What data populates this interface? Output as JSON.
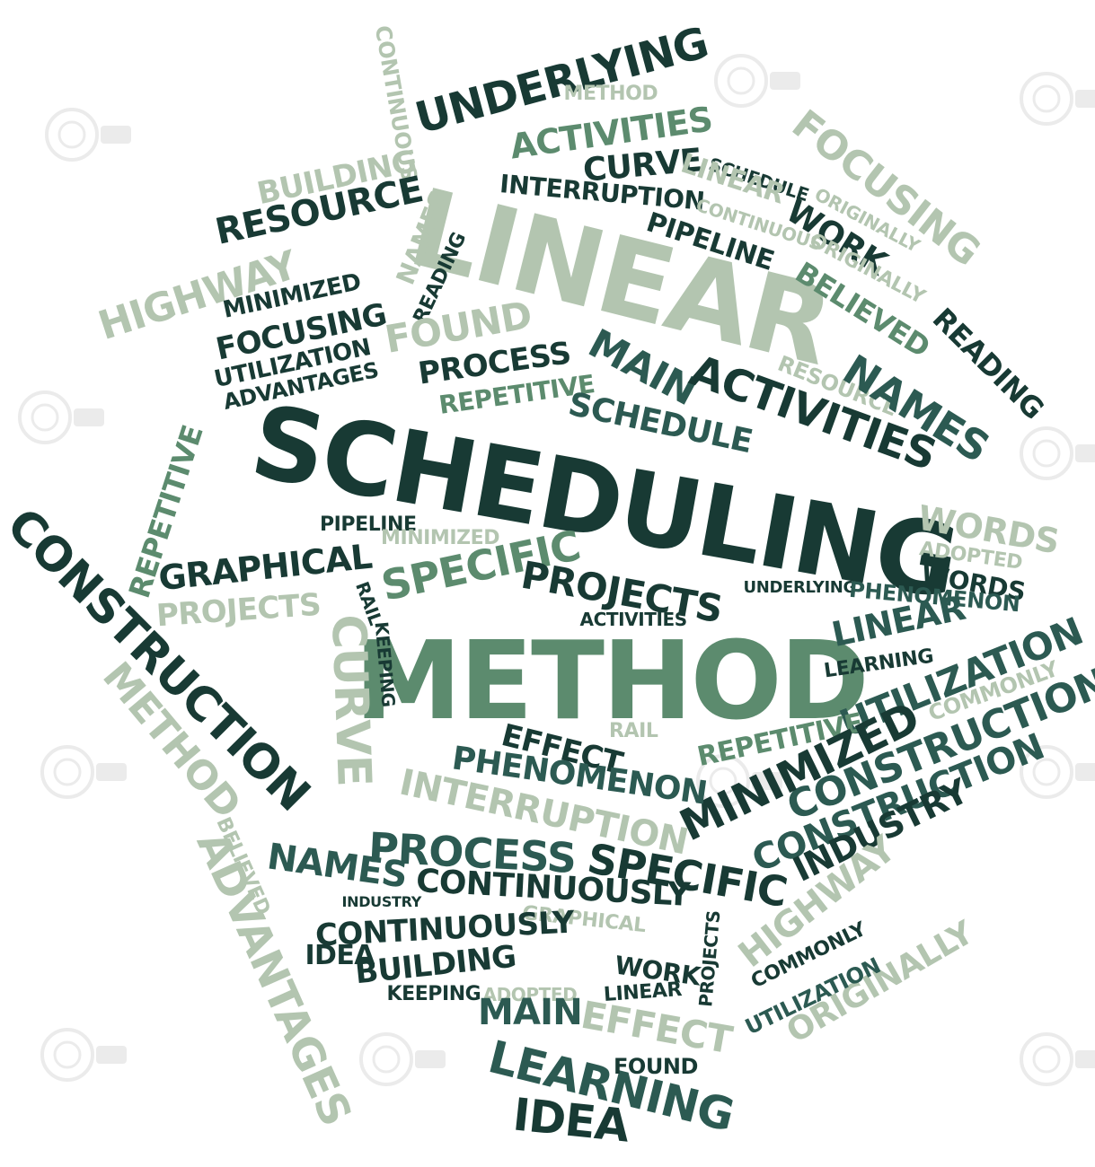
{
  "palette": {
    "dark": "#183a34",
    "teal": "#2c5a52",
    "mid": "#5c8b6e",
    "pale": "#b3c5b0"
  },
  "words": [
    {
      "t": "SCHEDULING",
      "c": "dark"
    },
    {
      "t": "METHOD",
      "c": "mid"
    },
    {
      "t": "LINEAR",
      "c": "pale"
    },
    {
      "t": "CONSTRUCTION",
      "c": "dark"
    },
    {
      "t": "UNDERLYING",
      "c": "dark"
    },
    {
      "t": "CONTINUOUS",
      "c": "pale"
    },
    {
      "t": "METHOD",
      "c": "pale"
    },
    {
      "t": "ACTIVITIES",
      "c": "mid"
    },
    {
      "t": "CURVE",
      "c": "dark"
    },
    {
      "t": "FOCUSING",
      "c": "pale"
    },
    {
      "t": "BUILDING",
      "c": "pale"
    },
    {
      "t": "RESOURCE",
      "c": "dark"
    },
    {
      "t": "INTERRUPTION",
      "c": "dark"
    },
    {
      "t": "SCHEDULE",
      "c": "dark"
    },
    {
      "t": "LINEAR",
      "c": "pale"
    },
    {
      "t": "ORIGINALLY",
      "c": "pale"
    },
    {
      "t": "CONTINUOUS",
      "c": "pale"
    },
    {
      "t": "PIPELINE",
      "c": "dark"
    },
    {
      "t": "WORK",
      "c": "dark"
    },
    {
      "t": "ORIGINALLY",
      "c": "pale"
    },
    {
      "t": "NAMES",
      "c": "pale"
    },
    {
      "t": "HIGHWAY",
      "c": "pale"
    },
    {
      "t": "MINIMIZED",
      "c": "dark"
    },
    {
      "t": "READING",
      "c": "dark"
    },
    {
      "t": "FOCUSING",
      "c": "dark"
    },
    {
      "t": "FOUND",
      "c": "pale"
    },
    {
      "t": "BELIEVED",
      "c": "mid"
    },
    {
      "t": "READING",
      "c": "dark"
    },
    {
      "t": "UTILIZATION",
      "c": "dark"
    },
    {
      "t": "ADVANTAGES",
      "c": "dark"
    },
    {
      "t": "PROCESS",
      "c": "dark"
    },
    {
      "t": "REPETITIVE",
      "c": "mid"
    },
    {
      "t": "MAIN",
      "c": "teal"
    },
    {
      "t": "ACTIVITIES",
      "c": "dark"
    },
    {
      "t": "RESOURCE",
      "c": "pale"
    },
    {
      "t": "NAMES",
      "c": "teal"
    },
    {
      "t": "SCHEDULE",
      "c": "teal"
    },
    {
      "t": "REPETITIVE",
      "c": "mid"
    },
    {
      "t": "WORDS",
      "c": "pale"
    },
    {
      "t": "ADOPTED",
      "c": "pale"
    },
    {
      "t": "WORDS",
      "c": "dark"
    },
    {
      "t": "PIPELINE",
      "c": "dark"
    },
    {
      "t": "MINIMIZED",
      "c": "pale"
    },
    {
      "t": "GRAPHICAL",
      "c": "dark"
    },
    {
      "t": "SPECIFIC",
      "c": "mid"
    },
    {
      "t": "PROJECTS",
      "c": "dark"
    },
    {
      "t": "UNDERLYING",
      "c": "dark"
    },
    {
      "t": "PHENOMENON",
      "c": "teal"
    },
    {
      "t": "PROJECTS",
      "c": "pale"
    },
    {
      "t": "RAIL",
      "c": "dark"
    },
    {
      "t": "ACTIVITIES",
      "c": "dark"
    },
    {
      "t": "LINEAR",
      "c": "teal"
    },
    {
      "t": "KEEPING",
      "c": "dark"
    },
    {
      "t": "CURVE",
      "c": "pale"
    },
    {
      "t": "LEARNING",
      "c": "dark"
    },
    {
      "t": "UTILIZATION",
      "c": "teal"
    },
    {
      "t": "COMMONLY",
      "c": "pale"
    },
    {
      "t": "METHOD",
      "c": "pale"
    },
    {
      "t": "RAIL",
      "c": "pale"
    },
    {
      "t": "REPETITIVE",
      "c": "mid"
    },
    {
      "t": "CONSTRUCTION",
      "c": "teal"
    },
    {
      "t": "EFFECT",
      "c": "dark"
    },
    {
      "t": "MINIMIZED",
      "c": "dark"
    },
    {
      "t": "PHENOMENON",
      "c": "teal"
    },
    {
      "t": "INTERRUPTION",
      "c": "pale"
    },
    {
      "t": "CONSTRUCTION",
      "c": "teal"
    },
    {
      "t": "INDUSTRY",
      "c": "dark"
    },
    {
      "t": "BELIEVED",
      "c": "pale"
    },
    {
      "t": "PROCESS",
      "c": "teal"
    },
    {
      "t": "SPECIFIC",
      "c": "dark"
    },
    {
      "t": "ADVANTAGES",
      "c": "pale"
    },
    {
      "t": "NAMES",
      "c": "teal"
    },
    {
      "t": "CONTINUOUSLY",
      "c": "dark"
    },
    {
      "t": "HIGHWAY",
      "c": "pale"
    },
    {
      "t": "INDUSTRY",
      "c": "dark"
    },
    {
      "t": "GRAPHICAL",
      "c": "pale"
    },
    {
      "t": "PROJECTS",
      "c": "dark"
    },
    {
      "t": "CONTINUOUSLY",
      "c": "dark"
    },
    {
      "t": "COMMONLY",
      "c": "dark"
    },
    {
      "t": "ORIGINALLY",
      "c": "pale"
    },
    {
      "t": "IDEA",
      "c": "dark"
    },
    {
      "t": "BUILDING",
      "c": "dark"
    },
    {
      "t": "WORK",
      "c": "dark"
    },
    {
      "t": "UTILIZATION",
      "c": "teal"
    },
    {
      "t": "KEEPING",
      "c": "dark"
    },
    {
      "t": "ADOPTED",
      "c": "pale"
    },
    {
      "t": "LINEAR",
      "c": "dark"
    },
    {
      "t": "MAIN",
      "c": "teal"
    },
    {
      "t": "EFFECT",
      "c": "pale"
    },
    {
      "t": "LEARNING",
      "c": "teal"
    },
    {
      "t": "FOUND",
      "c": "dark"
    },
    {
      "t": "IDEA",
      "c": "dark"
    }
  ]
}
